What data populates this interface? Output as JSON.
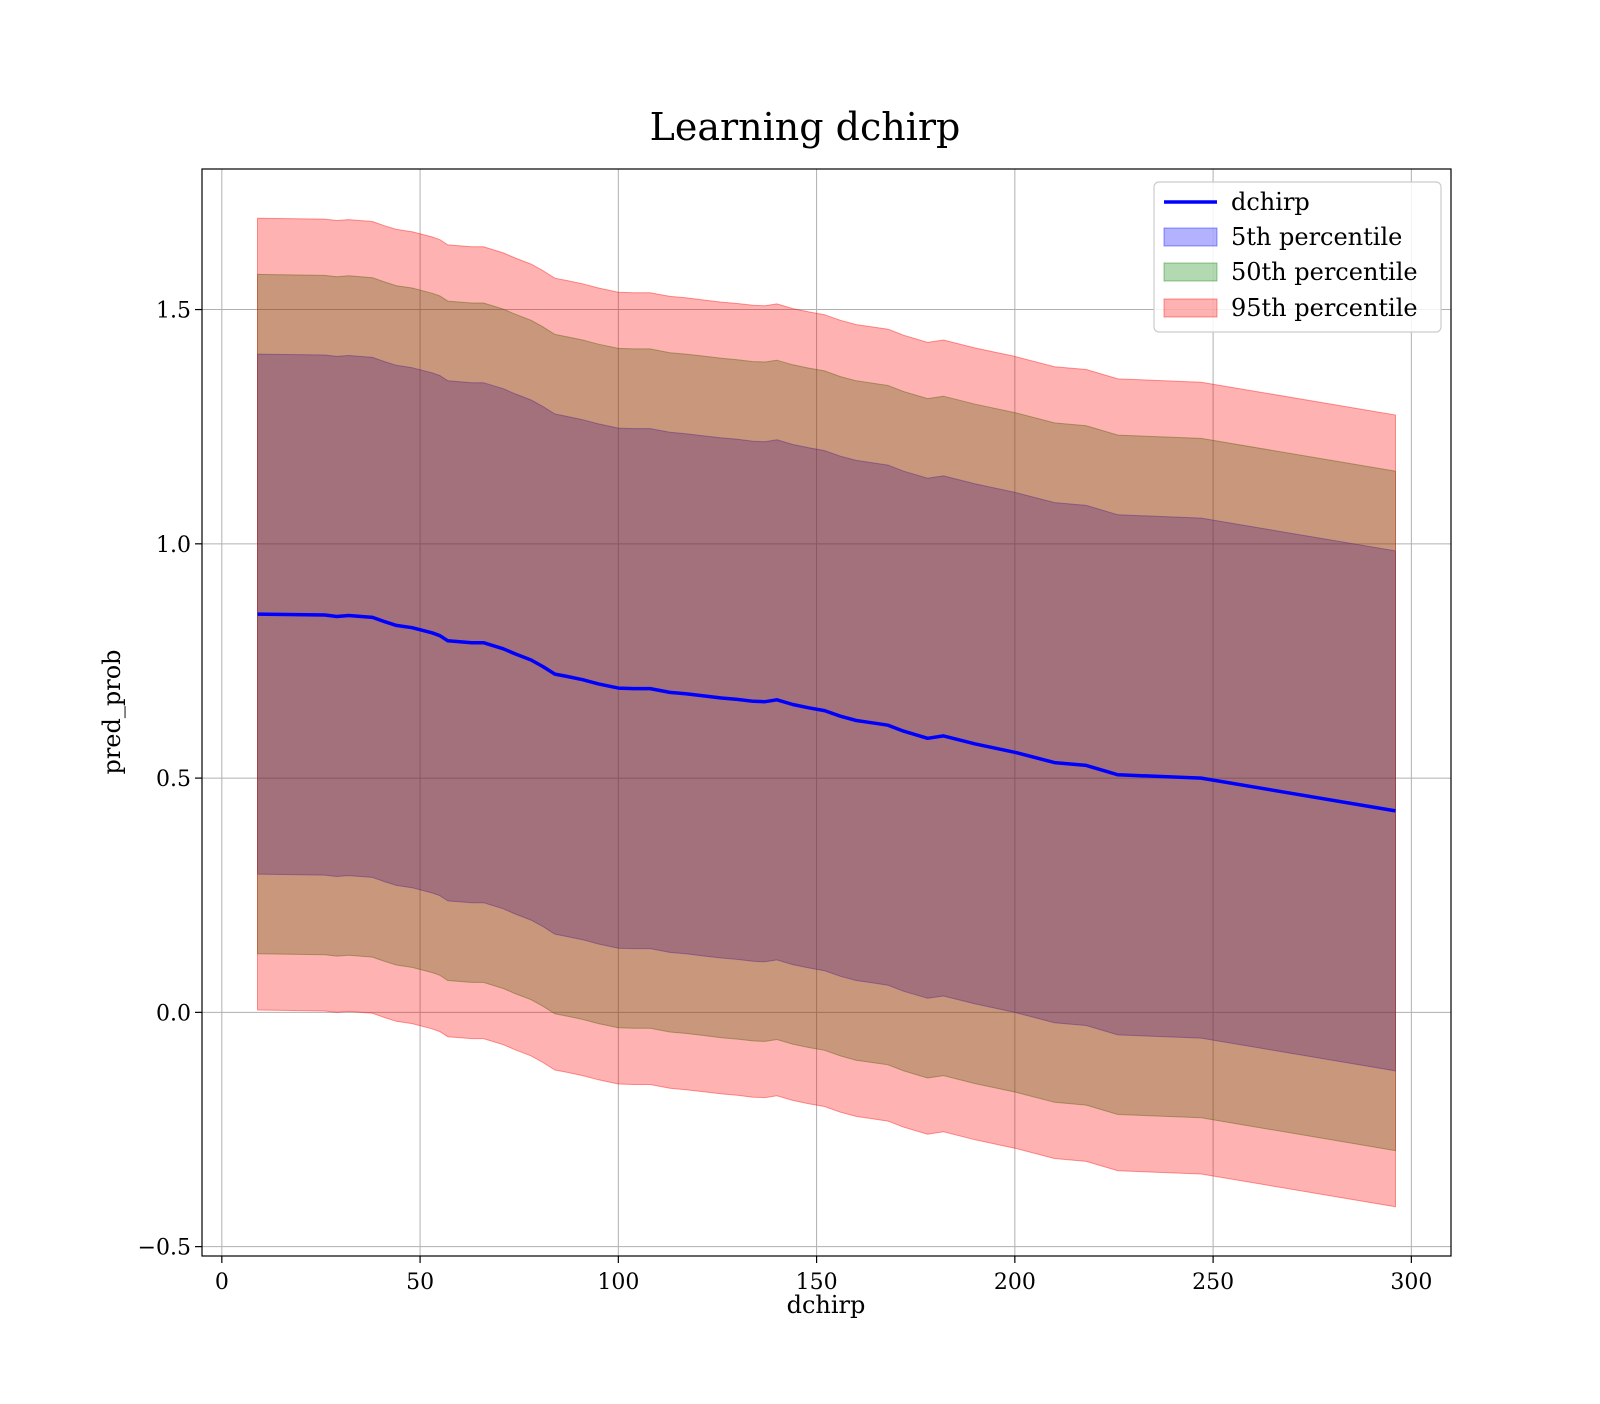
{
  "chart_data": {
    "type": "area",
    "title": "Learning dchirp",
    "xlabel": "dchirp",
    "ylabel": "pred_prob",
    "xlim": [
      -5,
      310
    ],
    "ylim": [
      -0.52,
      1.8
    ],
    "x_ticks": [
      0,
      50,
      100,
      150,
      200,
      250,
      300
    ],
    "x_tick_labels": [
      "0",
      "50",
      "100",
      "150",
      "200",
      "250",
      "300"
    ],
    "y_ticks": [
      -0.5,
      0.0,
      0.5,
      1.0,
      1.5
    ],
    "y_tick_labels": [
      "−0.5",
      "0.0",
      "0.5",
      "1.0",
      "1.5"
    ],
    "grid": true,
    "legend_position": "upper right",
    "x": [
      9,
      26,
      29,
      32,
      38,
      41,
      44,
      48,
      53,
      55,
      57,
      63,
      66,
      71,
      74,
      78,
      81,
      84,
      87,
      91,
      95,
      100,
      104,
      108,
      113,
      117,
      121,
      126,
      130,
      134,
      137,
      140,
      144,
      148,
      152,
      156,
      160,
      164,
      168,
      172,
      178,
      182,
      190,
      200,
      210,
      218,
      226,
      247,
      296
    ],
    "line": {
      "name": "dchirp",
      "color": "#0000ff",
      "values": [
        0.85,
        0.848,
        0.845,
        0.847,
        0.843,
        0.834,
        0.826,
        0.821,
        0.81,
        0.804,
        0.793,
        0.789,
        0.789,
        0.776,
        0.765,
        0.752,
        0.738,
        0.722,
        0.717,
        0.71,
        0.701,
        0.692,
        0.691,
        0.691,
        0.683,
        0.68,
        0.676,
        0.671,
        0.668,
        0.664,
        0.663,
        0.667,
        0.657,
        0.65,
        0.644,
        0.632,
        0.623,
        0.618,
        0.613,
        0.6,
        0.585,
        0.59,
        0.573,
        0.555,
        0.533,
        0.527,
        0.507,
        0.5,
        0.43
      ]
    },
    "bands": [
      {
        "name": "5th percentile",
        "color": "#0000ff",
        "half_width": 0.555
      },
      {
        "name": "50th percentile",
        "color": "#008000",
        "half_width": 0.725
      },
      {
        "name": "95th percentile",
        "color": "#ff0000",
        "half_width": 0.845
      }
    ],
    "band_opacity": 0.3
  }
}
